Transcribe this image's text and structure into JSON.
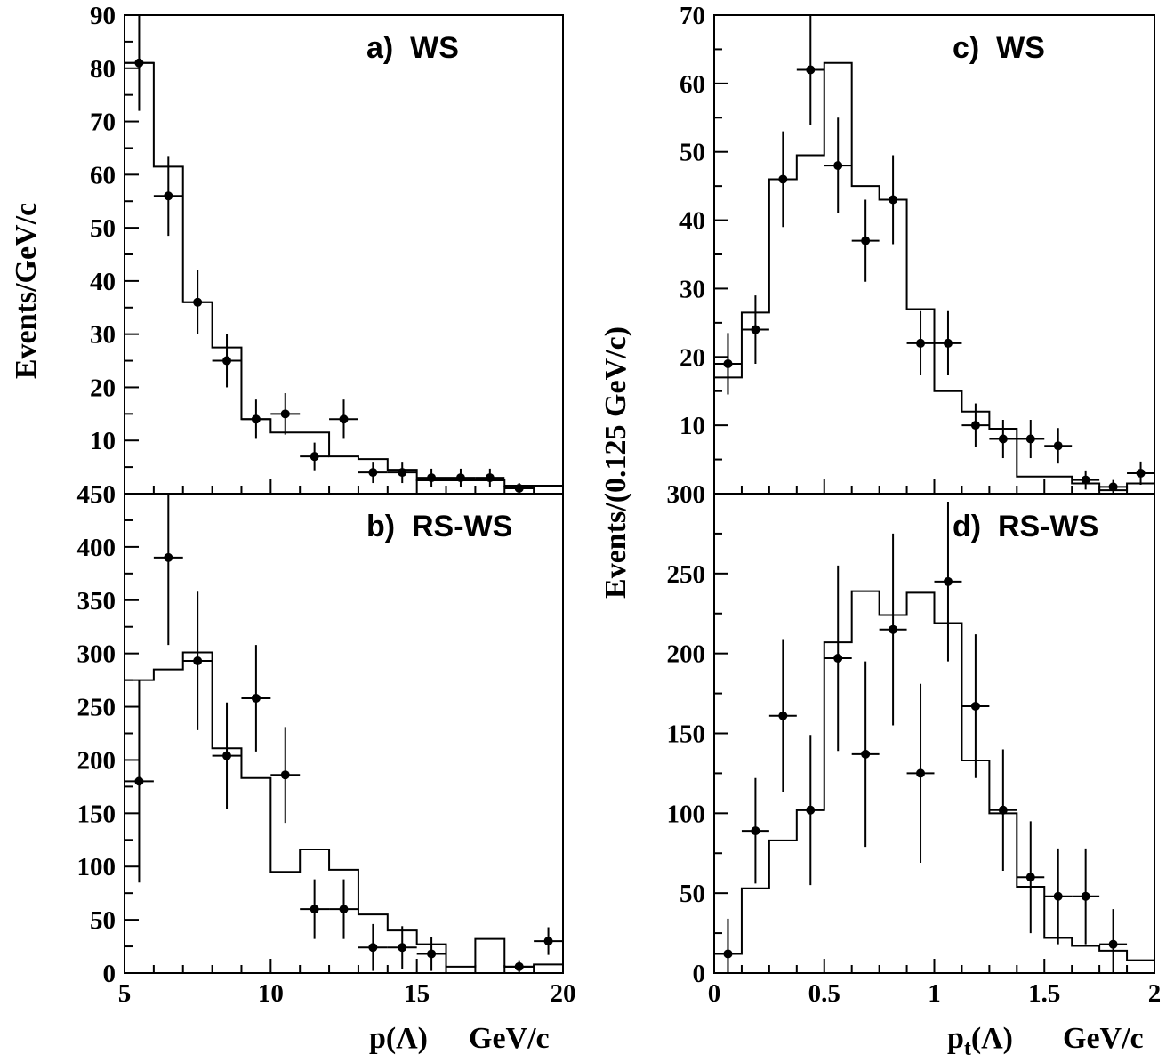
{
  "chart_data": [
    {
      "panel": "a",
      "type": "scatter",
      "label": "a)  WS",
      "ylabel": "Events/GeV/c",
      "xlim": [
        5,
        20
      ],
      "ylim": [
        0,
        90
      ],
      "yticks": [
        10,
        20,
        30,
        40,
        50,
        60,
        70,
        80,
        90
      ],
      "xticks": [],
      "hist_edges": [
        5,
        6,
        7,
        8,
        9,
        10,
        11,
        12,
        13,
        14,
        15,
        16,
        17,
        18,
        19,
        20
      ],
      "hist_values": [
        81,
        61.5,
        36,
        27.5,
        14,
        11.5,
        11.5,
        7,
        6.5,
        4.5,
        2.5,
        2.5,
        2.5,
        1.5,
        1.5
      ],
      "points": [
        {
          "x": 5.5,
          "y": 81,
          "err": 9
        },
        {
          "x": 6.5,
          "y": 56,
          "err": 7.5
        },
        {
          "x": 7.5,
          "y": 36,
          "err": 6
        },
        {
          "x": 8.5,
          "y": 25,
          "err": 5
        },
        {
          "x": 9.5,
          "y": 14,
          "err": 3.7
        },
        {
          "x": 10.5,
          "y": 15,
          "err": 3.9
        },
        {
          "x": 11.5,
          "y": 7,
          "err": 2.6
        },
        {
          "x": 12.5,
          "y": 14,
          "err": 3.7
        },
        {
          "x": 13.5,
          "y": 4,
          "err": 2
        },
        {
          "x": 14.5,
          "y": 4,
          "err": 2
        },
        {
          "x": 15.5,
          "y": 3,
          "err": 1.7
        },
        {
          "x": 16.5,
          "y": 3,
          "err": 1.7
        },
        {
          "x": 17.5,
          "y": 3,
          "err": 1.7
        },
        {
          "x": 18.5,
          "y": 1,
          "err": 1
        }
      ]
    },
    {
      "panel": "b",
      "type": "scatter",
      "label": "b)  RS-WS",
      "xlabel": "p(Λ)    GeV/c",
      "xlim": [
        5,
        20
      ],
      "ylim": [
        0,
        450
      ],
      "yticks": [
        0,
        50,
        100,
        150,
        200,
        250,
        300,
        350,
        400,
        450
      ],
      "xticks": [
        5,
        10,
        15,
        20
      ],
      "hist_edges": [
        5,
        6,
        7,
        8,
        9,
        10,
        11,
        12,
        13,
        14,
        15,
        16,
        17,
        18,
        19,
        20
      ],
      "hist_values": [
        275,
        285,
        301,
        211,
        183,
        95,
        116,
        97,
        55,
        40,
        27,
        6,
        32,
        6,
        8
      ],
      "points": [
        {
          "x": 5.5,
          "y": 180,
          "err": 95
        },
        {
          "x": 6.5,
          "y": 390,
          "err": 82
        },
        {
          "x": 7.5,
          "y": 293,
          "err": 65
        },
        {
          "x": 8.5,
          "y": 204,
          "err": 50
        },
        {
          "x": 9.5,
          "y": 258,
          "err": 50
        },
        {
          "x": 10.5,
          "y": 186,
          "err": 45
        },
        {
          "x": 11.5,
          "y": 60,
          "err": 28
        },
        {
          "x": 12.5,
          "y": 60,
          "err": 28
        },
        {
          "x": 13.5,
          "y": 24,
          "err": 22
        },
        {
          "x": 14.5,
          "y": 24,
          "err": 20
        },
        {
          "x": 15.5,
          "y": 18,
          "err": 16
        },
        {
          "x": 18.5,
          "y": 6,
          "err": 6
        },
        {
          "x": 19.5,
          "y": 30,
          "err": 13
        }
      ]
    },
    {
      "panel": "c",
      "type": "scatter",
      "label": "c)  WS",
      "ylabel": "Events/(0.125 GeV/c)",
      "xlim": [
        0,
        2
      ],
      "ylim": [
        0,
        70
      ],
      "yticks": [
        10,
        20,
        30,
        40,
        50,
        60,
        70
      ],
      "xticks": [],
      "hist_edges": [
        0,
        0.125,
        0.25,
        0.375,
        0.5,
        0.625,
        0.75,
        0.875,
        1.0,
        1.125,
        1.25,
        1.375,
        1.5,
        1.625,
        1.75,
        1.875,
        2.0
      ],
      "hist_values": [
        17,
        26.5,
        46,
        49.5,
        63,
        45,
        43,
        27,
        15,
        12,
        9.5,
        2.5,
        2.5,
        1.5,
        0.5,
        1.5
      ],
      "points": [
        {
          "x": 0.0625,
          "y": 19,
          "err": 4.5
        },
        {
          "x": 0.1875,
          "y": 24,
          "err": 5
        },
        {
          "x": 0.3125,
          "y": 46,
          "err": 7
        },
        {
          "x": 0.4375,
          "y": 62,
          "err": 8
        },
        {
          "x": 0.5625,
          "y": 48,
          "err": 7
        },
        {
          "x": 0.6875,
          "y": 37,
          "err": 6
        },
        {
          "x": 0.8125,
          "y": 43,
          "err": 6.5
        },
        {
          "x": 0.9375,
          "y": 22,
          "err": 4.7
        },
        {
          "x": 1.0625,
          "y": 22,
          "err": 4.7
        },
        {
          "x": 1.1875,
          "y": 10,
          "err": 3.2
        },
        {
          "x": 1.3125,
          "y": 8,
          "err": 2.8
        },
        {
          "x": 1.4375,
          "y": 8,
          "err": 2.8
        },
        {
          "x": 1.5625,
          "y": 7,
          "err": 2.6
        },
        {
          "x": 1.6875,
          "y": 2,
          "err": 1.4
        },
        {
          "x": 1.8125,
          "y": 1,
          "err": 1
        },
        {
          "x": 1.9375,
          "y": 3,
          "err": 1.7
        }
      ]
    },
    {
      "panel": "d",
      "type": "scatter",
      "label": "d)  RS-WS",
      "xlabel": "p_t(Λ)    GeV/c",
      "xlim": [
        0,
        2
      ],
      "ylim": [
        0,
        300
      ],
      "yticks": [
        0,
        50,
        100,
        150,
        200,
        250,
        300
      ],
      "xticks": [
        0,
        0.5,
        1,
        1.5,
        2
      ],
      "hist_edges": [
        0,
        0.125,
        0.25,
        0.375,
        0.5,
        0.625,
        0.75,
        0.875,
        1.0,
        1.125,
        1.25,
        1.375,
        1.5,
        1.625,
        1.75,
        1.875,
        2.0
      ],
      "hist_values": [
        12,
        53,
        83,
        102,
        207,
        239,
        224,
        238,
        219,
        133,
        100,
        54,
        22,
        17,
        14,
        8
      ],
      "points": [
        {
          "x": 0.0625,
          "y": 12,
          "err": 22
        },
        {
          "x": 0.1875,
          "y": 89,
          "err": 33
        },
        {
          "x": 0.3125,
          "y": 161,
          "err": 48
        },
        {
          "x": 0.4375,
          "y": 102,
          "err": 47
        },
        {
          "x": 0.5625,
          "y": 197,
          "err": 58
        },
        {
          "x": 0.6875,
          "y": 137,
          "err": 58
        },
        {
          "x": 0.8125,
          "y": 215,
          "err": 60
        },
        {
          "x": 0.9375,
          "y": 125,
          "err": 56
        },
        {
          "x": 1.0625,
          "y": 245,
          "err": 50
        },
        {
          "x": 1.1875,
          "y": 167,
          "err": 45
        },
        {
          "x": 1.3125,
          "y": 102,
          "err": 38
        },
        {
          "x": 1.4375,
          "y": 60,
          "err": 35
        },
        {
          "x": 1.5625,
          "y": 48,
          "err": 30
        },
        {
          "x": 1.6875,
          "y": 48,
          "err": 30
        },
        {
          "x": 1.8125,
          "y": 18,
          "err": 22
        }
      ]
    }
  ],
  "left_xlabel_main": "p(Λ)",
  "left_xlabel_unit": "GeV/c",
  "right_xlabel_main": "p",
  "right_xlabel_sub": "t",
  "right_xlabel_rest": "(Λ)",
  "right_xlabel_unit": "GeV/c"
}
